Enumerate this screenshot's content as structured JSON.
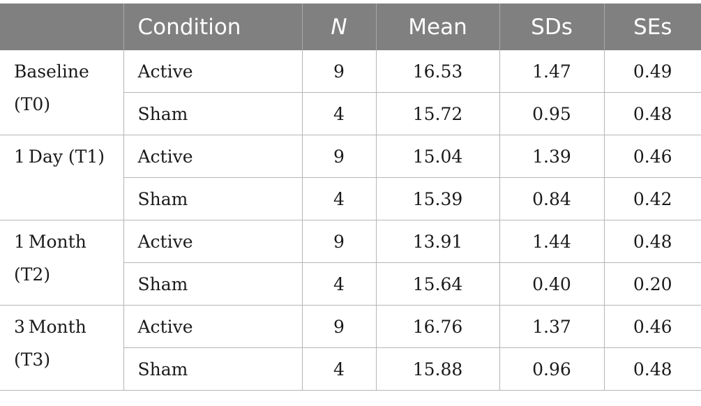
{
  "header": {
    "time": "",
    "condition": "Condition",
    "n": "N",
    "mean": "Mean",
    "sds": "SDs",
    "ses": "SEs"
  },
  "groups": [
    {
      "time_line1": "Baseline",
      "time_line2": "(T0)",
      "rows": [
        {
          "condition": "Active",
          "n": "9",
          "mean": "16.53",
          "sd": "1.47",
          "se": "0.49"
        },
        {
          "condition": "Sham",
          "n": "4",
          "mean": "15.72",
          "sd": "0.95",
          "se": "0.48"
        }
      ]
    },
    {
      "time_line1": "1 Day (T1)",
      "time_line2": "",
      "rows": [
        {
          "condition": "Active",
          "n": "9",
          "mean": "15.04",
          "sd": "1.39",
          "se": "0.46"
        },
        {
          "condition": "Sham",
          "n": "4",
          "mean": "15.39",
          "sd": "0.84",
          "se": "0.42"
        }
      ]
    },
    {
      "time_line1": "1 Month",
      "time_line2": "(T2)",
      "rows": [
        {
          "condition": "Active",
          "n": "9",
          "mean": "13.91",
          "sd": "1.44",
          "se": "0.48"
        },
        {
          "condition": "Sham",
          "n": "4",
          "mean": "15.64",
          "sd": "0.40",
          "se": "0.20"
        }
      ]
    },
    {
      "time_line1": "3 Month",
      "time_line2": "(T3)",
      "rows": [
        {
          "condition": "Active",
          "n": "9",
          "mean": "16.76",
          "sd": "1.37",
          "se": "0.46"
        },
        {
          "condition": "Sham",
          "n": "4",
          "mean": "15.88",
          "sd": "0.96",
          "se": "0.48"
        }
      ]
    }
  ]
}
